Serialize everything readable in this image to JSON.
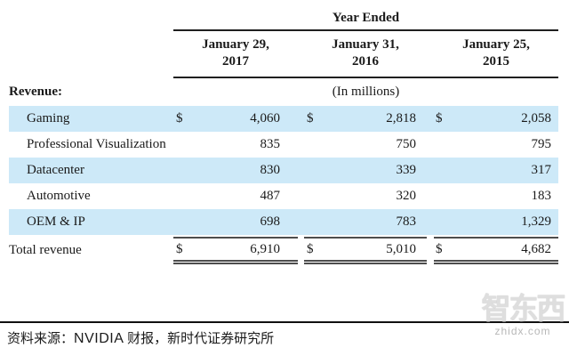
{
  "colors": {
    "stripe": "#cde9f8",
    "header_line": "#1f1f1f",
    "total_line": "#4d4d4d"
  },
  "table": {
    "header": {
      "year_ended": "Year Ended",
      "periods": [
        {
          "line1": "January 29,",
          "line2": "2017"
        },
        {
          "line1": "January 31,",
          "line2": "2016"
        },
        {
          "line1": "January 25,",
          "line2": "2015"
        }
      ]
    },
    "revenue_label": "Revenue:",
    "in_millions": "(In millions)",
    "currency_symbol": "$",
    "rows": [
      {
        "label": "Gaming",
        "dollar": "$",
        "values": [
          "4,060",
          "2,818",
          "2,058"
        ],
        "highlight": true
      },
      {
        "label": "Professional Visualization",
        "dollar": "",
        "values": [
          "835",
          "750",
          "795"
        ],
        "highlight": false
      },
      {
        "label": "Datacenter",
        "dollar": "",
        "values": [
          "830",
          "339",
          "317"
        ],
        "highlight": true
      },
      {
        "label": "Automotive",
        "dollar": "",
        "values": [
          "487",
          "320",
          "183"
        ],
        "highlight": false
      },
      {
        "label": "OEM & IP",
        "dollar": "",
        "values": [
          "698",
          "783",
          "1,329"
        ],
        "highlight": true
      }
    ],
    "total": {
      "label": "Total revenue",
      "dollar": "$",
      "values": [
        "6,910",
        "5,010",
        "4,682"
      ]
    }
  },
  "footer": {
    "source_prefix": "资料来源：",
    "source_brand": "NVIDIA",
    "source_suffix": " 财报，新时代证券研究所"
  },
  "watermark": {
    "text": "智东西",
    "domain": "zhidx.com"
  },
  "chart_data": {
    "type": "table",
    "title": "Year Ended",
    "unit": "In millions",
    "currency": "USD",
    "columns": [
      "January 29, 2017",
      "January 31, 2016",
      "January 25, 2015"
    ],
    "rows": [
      {
        "label": "Gaming",
        "values": [
          4060,
          2818,
          2058
        ]
      },
      {
        "label": "Professional Visualization",
        "values": [
          835,
          750,
          795
        ]
      },
      {
        "label": "Datacenter",
        "values": [
          830,
          339,
          317
        ]
      },
      {
        "label": "Automotive",
        "values": [
          487,
          320,
          183
        ]
      },
      {
        "label": "OEM & IP",
        "values": [
          698,
          783,
          1329
        ]
      },
      {
        "label": "Total revenue",
        "values": [
          6910,
          5010,
          4682
        ]
      }
    ]
  }
}
